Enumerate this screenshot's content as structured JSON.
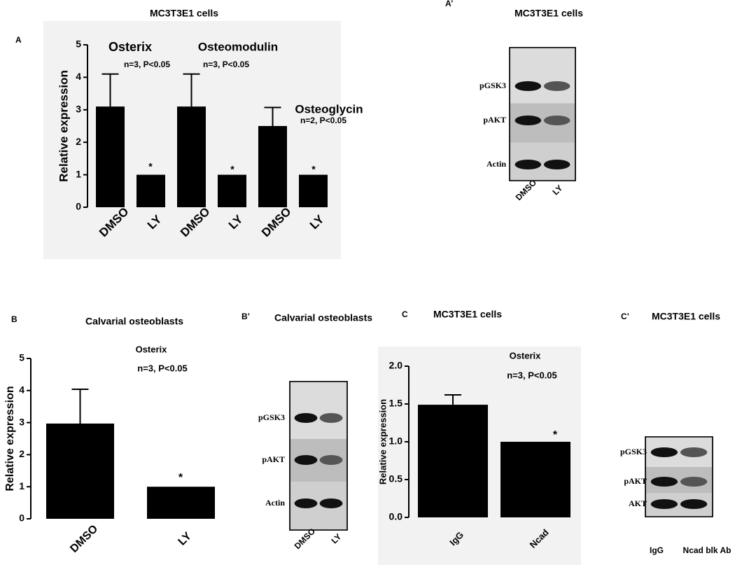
{
  "chart_data": [
    {
      "type": "bar",
      "panel": "A",
      "title": "MC3T3E1 cells",
      "y_label": "Relative expression",
      "categories": [
        "DMSO",
        "LY",
        "DMSO",
        "LY",
        "DMSO",
        "LY"
      ],
      "values": [
        3.1,
        1,
        3.1,
        1,
        2.5,
        1
      ],
      "errors": [
        1.0,
        null,
        1.0,
        null,
        0.57,
        null
      ],
      "color": "#000000",
      "ylim": [
        0,
        5
      ],
      "yticks": [
        0,
        1,
        2,
        3,
        4,
        5
      ],
      "annotations": [
        "Osterix",
        "n=3, P<0.05",
        "Osteomodulin",
        "n=3, P<0.05",
        "Osteoglycin",
        "n=2, P<0.05",
        "*",
        "*",
        "*"
      ]
    },
    {
      "type": "bar",
      "panel": "B",
      "title": "Calvarial osteoblasts",
      "y_label": "Relative expression",
      "categories": [
        "DMSO",
        "LY"
      ],
      "values": [
        2.97,
        1
      ],
      "errors": [
        1.07,
        null
      ],
      "color": "#000000",
      "ylim": [
        0,
        5
      ],
      "yticks": [
        0,
        1,
        2,
        3,
        4,
        5
      ],
      "annotations": [
        "Osterix",
        "n=3, P<0.05",
        "*"
      ]
    },
    {
      "type": "bar",
      "panel": "C",
      "title": "MC3T3E1 cells",
      "y_label": "Relative expression",
      "categories": [
        "IgG",
        "Ncad"
      ],
      "values": [
        1.49,
        1.0
      ],
      "errors": [
        0.13,
        null
      ],
      "color": "#000000",
      "ylim": [
        0,
        2
      ],
      "yticks": [
        {
          "value": 0,
          "label": "0.0"
        },
        0.5,
        {
          "value": 1,
          "label": "1.0"
        },
        1.5,
        {
          "value": 2,
          "label": "2.0"
        }
      ],
      "annotations": [
        "Osterix",
        "n=3, P<0.05",
        "*"
      ]
    }
  ],
  "blots": [
    {
      "panel": "A’",
      "title": "MC3T3E1 cells",
      "rows": [
        "pGSK3",
        "pAKT",
        "Actin"
      ],
      "lanes": [
        "DMSO",
        "LY"
      ]
    },
    {
      "panel": "B’",
      "title": "Calvarial osteoblasts",
      "rows": [
        "pGSK3",
        "pAKT",
        "Actin"
      ],
      "lanes": [
        "DMSO",
        "LY"
      ]
    },
    {
      "panel": "C’",
      "title": "MC3T3E1 cells",
      "rows": [
        "pGSK3",
        "pAKT",
        "AKT"
      ],
      "lanes": [
        "IgG",
        "Ncad blk Ab"
      ]
    }
  ]
}
